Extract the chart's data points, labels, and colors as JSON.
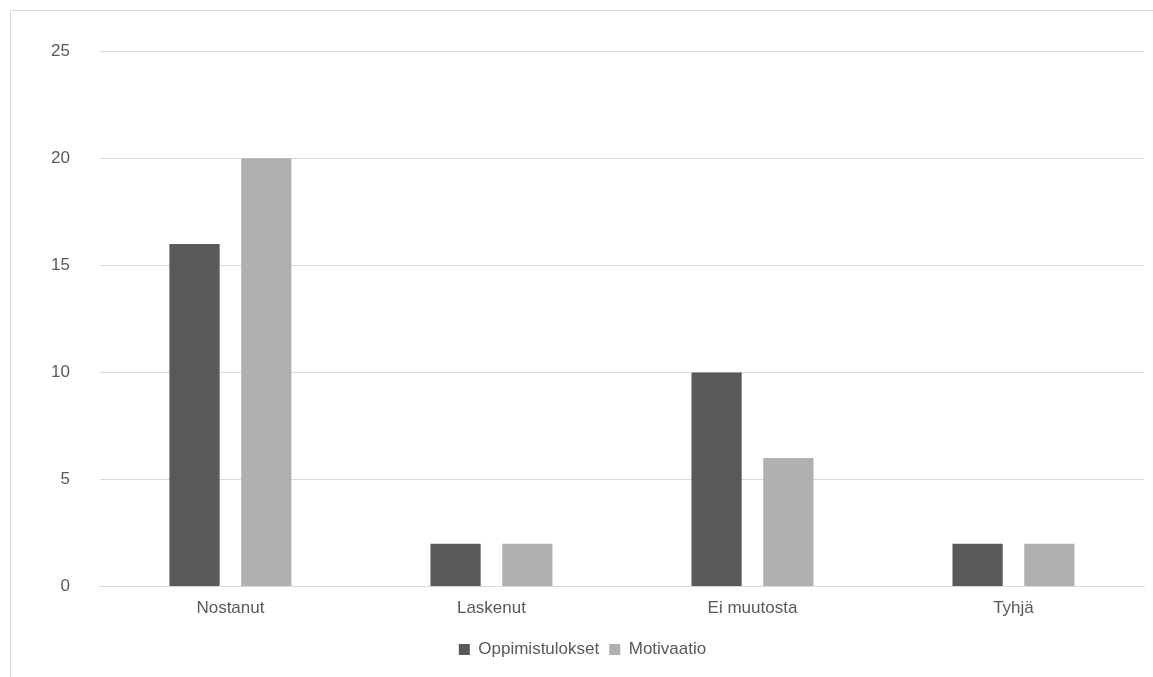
{
  "chart_data": {
    "type": "bar",
    "categories": [
      "Nostanut",
      "Laskenut",
      "Ei muutosta",
      "Tyhjä"
    ],
    "series": [
      {
        "name": "Oppimistulokset",
        "color": "#595959",
        "values": [
          16,
          2,
          10,
          2
        ]
      },
      {
        "name": "Motivaatio",
        "color": "#b0b0b0",
        "values": [
          20,
          2,
          6,
          2
        ]
      }
    ],
    "ylim": [
      0,
      25
    ],
    "yticks": [
      0,
      5,
      10,
      15,
      20,
      25
    ],
    "grid": "y",
    "legend": "bottom"
  }
}
